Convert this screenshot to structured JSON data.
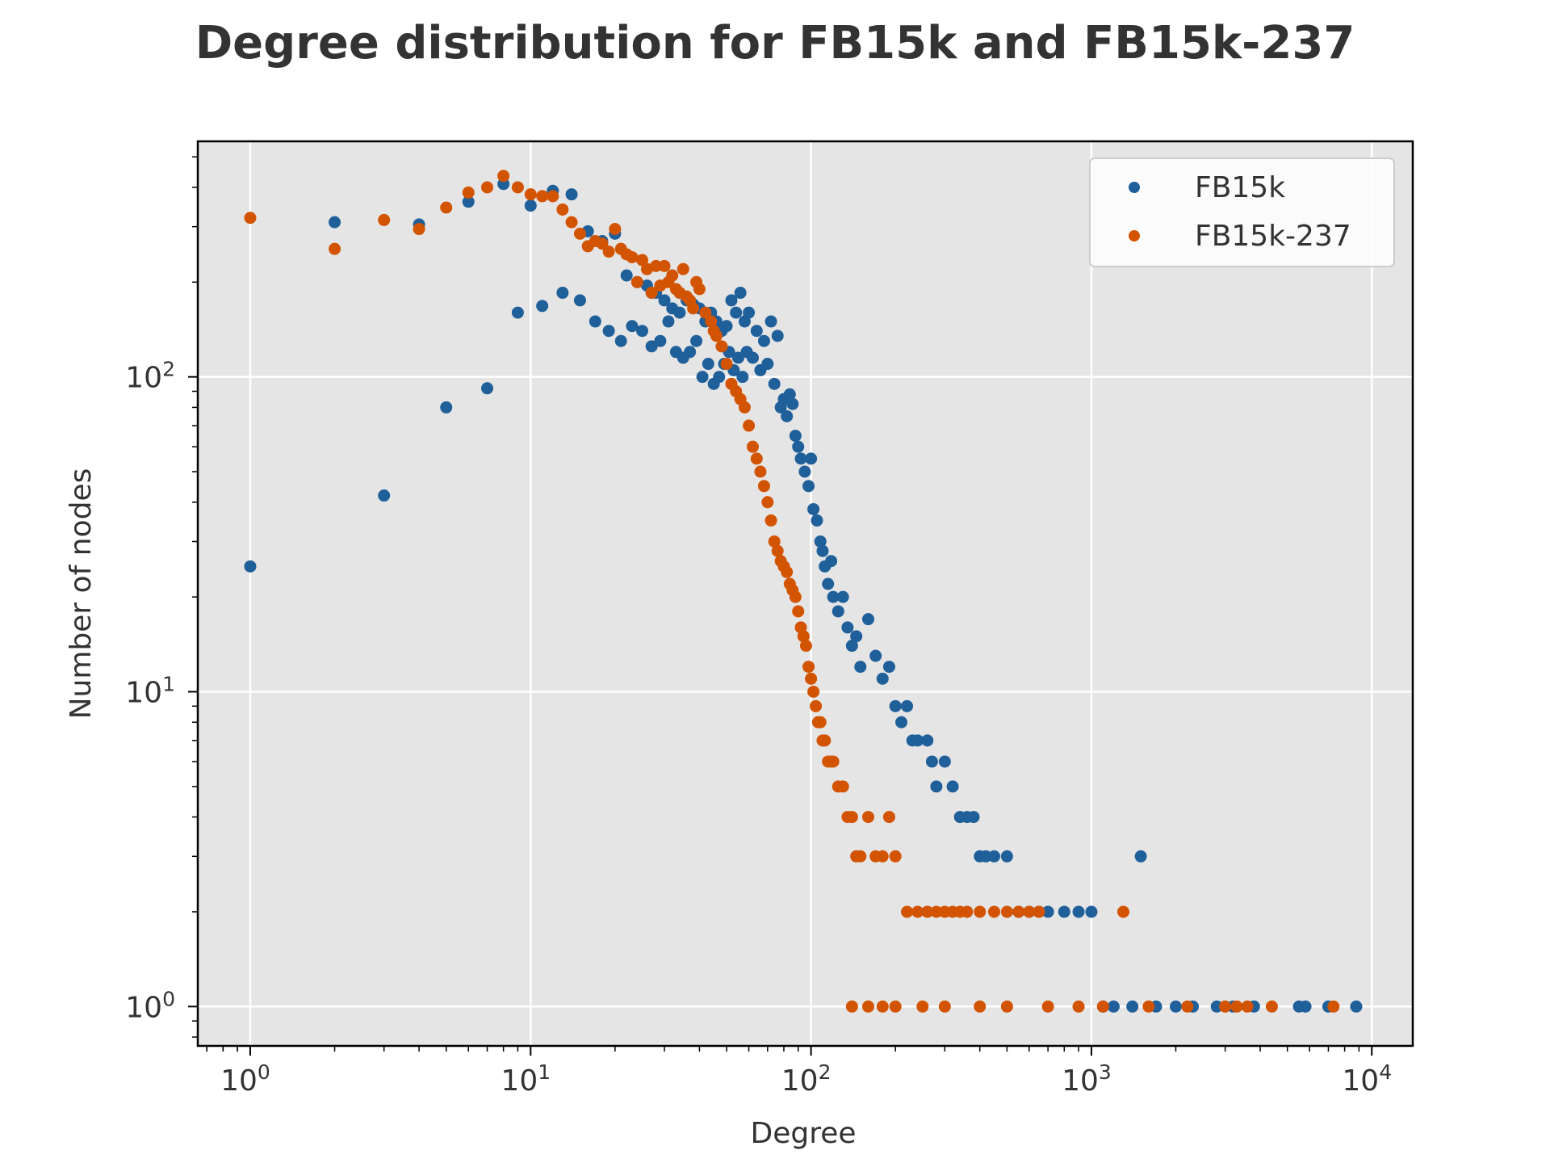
{
  "chart_data": {
    "type": "scatter",
    "title": "Degree distribution for FB15k and FB15k-237",
    "xlabel": "Degree",
    "ylabel": "Number of nodes",
    "xscale": "log",
    "yscale": "log",
    "xlim": [
      0.65,
      14000
    ],
    "ylim": [
      0.75,
      560
    ],
    "xticks": [
      {
        "base": "10",
        "exp": "0",
        "value": 1
      },
      {
        "base": "10",
        "exp": "1",
        "value": 10
      },
      {
        "base": "10",
        "exp": "2",
        "value": 100
      },
      {
        "base": "10",
        "exp": "3",
        "value": 1000
      },
      {
        "base": "10",
        "exp": "4",
        "value": 10000
      }
    ],
    "yticks": [
      {
        "base": "10",
        "exp": "0",
        "value": 1
      },
      {
        "base": "10",
        "exp": "1",
        "value": 10
      },
      {
        "base": "10",
        "exp": "2",
        "value": 100
      }
    ],
    "grid": true,
    "legend_position": "top-right",
    "background": "#e5e5e5",
    "series": [
      {
        "name": "FB15k",
        "color": "#1f5f9a",
        "points": [
          [
            1,
            25
          ],
          [
            2,
            310
          ],
          [
            3,
            42
          ],
          [
            4,
            305
          ],
          [
            5,
            80
          ],
          [
            6,
            360
          ],
          [
            7,
            92
          ],
          [
            8,
            410
          ],
          [
            9,
            160
          ],
          [
            10,
            350
          ],
          [
            11,
            168
          ],
          [
            12,
            390
          ],
          [
            13,
            185
          ],
          [
            14,
            380
          ],
          [
            15,
            175
          ],
          [
            16,
            290
          ],
          [
            17,
            150
          ],
          [
            18,
            270
          ],
          [
            19,
            140
          ],
          [
            20,
            285
          ],
          [
            21,
            130
          ],
          [
            22,
            210
          ],
          [
            23,
            145
          ],
          [
            24,
            200
          ],
          [
            25,
            140
          ],
          [
            26,
            195
          ],
          [
            27,
            125
          ],
          [
            28,
            185
          ],
          [
            29,
            130
          ],
          [
            30,
            175
          ],
          [
            31,
            150
          ],
          [
            32,
            165
          ],
          [
            33,
            120
          ],
          [
            34,
            160
          ],
          [
            35,
            115
          ],
          [
            36,
            175
          ],
          [
            37,
            120
          ],
          [
            38,
            170
          ],
          [
            39,
            130
          ],
          [
            40,
            165
          ],
          [
            41,
            100
          ],
          [
            42,
            150
          ],
          [
            43,
            110
          ],
          [
            44,
            160
          ],
          [
            45,
            95
          ],
          [
            46,
            150
          ],
          [
            47,
            100
          ],
          [
            48,
            140
          ],
          [
            49,
            110
          ],
          [
            50,
            145
          ],
          [
            51,
            120
          ],
          [
            52,
            175
          ],
          [
            53,
            105
          ],
          [
            54,
            160
          ],
          [
            55,
            115
          ],
          [
            56,
            185
          ],
          [
            57,
            100
          ],
          [
            58,
            150
          ],
          [
            59,
            120
          ],
          [
            60,
            160
          ],
          [
            62,
            115
          ],
          [
            64,
            140
          ],
          [
            66,
            105
          ],
          [
            68,
            130
          ],
          [
            70,
            110
          ],
          [
            72,
            150
          ],
          [
            74,
            95
          ],
          [
            76,
            135
          ],
          [
            78,
            80
          ],
          [
            80,
            85
          ],
          [
            82,
            75
          ],
          [
            84,
            88
          ],
          [
            86,
            82
          ],
          [
            88,
            65
          ],
          [
            90,
            60
          ],
          [
            92,
            55
          ],
          [
            95,
            50
          ],
          [
            98,
            45
          ],
          [
            100,
            55
          ],
          [
            102,
            38
          ],
          [
            105,
            35
          ],
          [
            108,
            30
          ],
          [
            110,
            28
          ],
          [
            112,
            25
          ],
          [
            115,
            22
          ],
          [
            118,
            26
          ],
          [
            120,
            20
          ],
          [
            125,
            18
          ],
          [
            130,
            20
          ],
          [
            135,
            16
          ],
          [
            140,
            14
          ],
          [
            145,
            15
          ],
          [
            150,
            12
          ],
          [
            160,
            17
          ],
          [
            170,
            13
          ],
          [
            180,
            11
          ],
          [
            190,
            12
          ],
          [
            200,
            9
          ],
          [
            210,
            8
          ],
          [
            220,
            9
          ],
          [
            230,
            7
          ],
          [
            240,
            7
          ],
          [
            260,
            7
          ],
          [
            270,
            6
          ],
          [
            280,
            5
          ],
          [
            300,
            6
          ],
          [
            320,
            5
          ],
          [
            340,
            4
          ],
          [
            360,
            4
          ],
          [
            380,
            4
          ],
          [
            400,
            3
          ],
          [
            420,
            3
          ],
          [
            450,
            3
          ],
          [
            500,
            3
          ],
          [
            550,
            2
          ],
          [
            600,
            2
          ],
          [
            650,
            2
          ],
          [
            700,
            2
          ],
          [
            800,
            2
          ],
          [
            900,
            2
          ],
          [
            1000,
            2
          ],
          [
            1100,
            1
          ],
          [
            1200,
            1
          ],
          [
            1400,
            1
          ],
          [
            1500,
            3
          ],
          [
            1700,
            1
          ],
          [
            2000,
            1
          ],
          [
            2300,
            1
          ],
          [
            2800,
            1
          ],
          [
            3200,
            1
          ],
          [
            3800,
            1
          ],
          [
            5500,
            1
          ],
          [
            5800,
            1
          ],
          [
            7000,
            1
          ],
          [
            8800,
            1
          ]
        ]
      },
      {
        "name": "FB15k-237",
        "color": "#d35400",
        "points": [
          [
            1,
            320
          ],
          [
            2,
            255
          ],
          [
            3,
            315
          ],
          [
            4,
            295
          ],
          [
            5,
            345
          ],
          [
            6,
            385
          ],
          [
            7,
            400
          ],
          [
            8,
            435
          ],
          [
            9,
            400
          ],
          [
            10,
            380
          ],
          [
            11,
            375
          ],
          [
            12,
            375
          ],
          [
            13,
            340
          ],
          [
            14,
            310
          ],
          [
            15,
            285
          ],
          [
            16,
            260
          ],
          [
            17,
            270
          ],
          [
            18,
            265
          ],
          [
            19,
            250
          ],
          [
            20,
            295
          ],
          [
            21,
            255
          ],
          [
            22,
            245
          ],
          [
            23,
            240
          ],
          [
            24,
            200
          ],
          [
            25,
            235
          ],
          [
            26,
            220
          ],
          [
            27,
            185
          ],
          [
            28,
            225
          ],
          [
            29,
            195
          ],
          [
            30,
            225
          ],
          [
            31,
            200
          ],
          [
            32,
            210
          ],
          [
            33,
            190
          ],
          [
            34,
            185
          ],
          [
            35,
            220
          ],
          [
            36,
            180
          ],
          [
            37,
            175
          ],
          [
            38,
            165
          ],
          [
            39,
            200
          ],
          [
            40,
            190
          ],
          [
            42,
            160
          ],
          [
            44,
            150
          ],
          [
            45,
            140
          ],
          [
            46,
            135
          ],
          [
            48,
            125
          ],
          [
            50,
            110
          ],
          [
            52,
            95
          ],
          [
            54,
            90
          ],
          [
            56,
            85
          ],
          [
            58,
            80
          ],
          [
            60,
            70
          ],
          [
            62,
            60
          ],
          [
            64,
            55
          ],
          [
            66,
            50
          ],
          [
            68,
            45
          ],
          [
            70,
            40
          ],
          [
            72,
            35
          ],
          [
            74,
            30
          ],
          [
            76,
            28
          ],
          [
            78,
            26
          ],
          [
            80,
            25
          ],
          [
            82,
            24
          ],
          [
            84,
            22
          ],
          [
            86,
            21
          ],
          [
            88,
            20
          ],
          [
            90,
            18
          ],
          [
            92,
            16
          ],
          [
            94,
            15
          ],
          [
            96,
            14
          ],
          [
            98,
            12
          ],
          [
            100,
            11
          ],
          [
            102,
            10
          ],
          [
            104,
            9
          ],
          [
            106,
            8
          ],
          [
            108,
            8
          ],
          [
            110,
            7
          ],
          [
            112,
            7
          ],
          [
            115,
            6
          ],
          [
            118,
            6
          ],
          [
            120,
            6
          ],
          [
            125,
            5
          ],
          [
            130,
            5
          ],
          [
            135,
            4
          ],
          [
            140,
            4
          ],
          [
            145,
            3
          ],
          [
            150,
            3
          ],
          [
            160,
            4
          ],
          [
            170,
            3
          ],
          [
            180,
            3
          ],
          [
            190,
            4
          ],
          [
            200,
            3
          ],
          [
            220,
            2
          ],
          [
            240,
            2
          ],
          [
            260,
            2
          ],
          [
            280,
            2
          ],
          [
            300,
            2
          ],
          [
            320,
            2
          ],
          [
            340,
            2
          ],
          [
            360,
            2
          ],
          [
            400,
            2
          ],
          [
            450,
            2
          ],
          [
            500,
            2
          ],
          [
            550,
            2
          ],
          [
            600,
            2
          ],
          [
            650,
            2
          ],
          [
            1300,
            2
          ],
          [
            140,
            1
          ],
          [
            160,
            1
          ],
          [
            180,
            1
          ],
          [
            200,
            1
          ],
          [
            250,
            1
          ],
          [
            300,
            1
          ],
          [
            400,
            1
          ],
          [
            500,
            1
          ],
          [
            700,
            1
          ],
          [
            900,
            1
          ],
          [
            1100,
            1
          ],
          [
            1600,
            1
          ],
          [
            2200,
            1
          ],
          [
            3000,
            1
          ],
          [
            3300,
            1
          ],
          [
            3600,
            1
          ],
          [
            4400,
            1
          ],
          [
            7300,
            1
          ]
        ]
      }
    ]
  }
}
